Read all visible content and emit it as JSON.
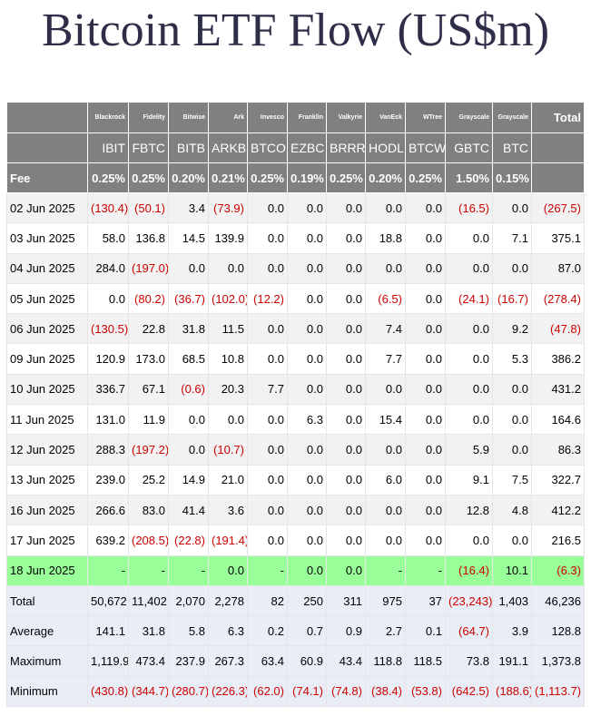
{
  "header": {
    "title": "Bitcoin ETF Flow (US$m)"
  },
  "table": {
    "issuers": [
      "Blackrock",
      "Fidelity",
      "Bitwise",
      "Ark",
      "Invesco",
      "Franklin",
      "Valkyrie",
      "VanEck",
      "WTree",
      "Grayscale",
      "Grayscale"
    ],
    "total_label": "Total",
    "tickers": [
      "IBIT",
      "FBTC",
      "BITB",
      "ARKB",
      "BTCO",
      "EZBC",
      "BRRR",
      "HODL",
      "BTCW",
      "GBTC",
      "BTC"
    ],
    "fee_label": "Fee",
    "fees": [
      "0.25%",
      "0.25%",
      "0.20%",
      "0.21%",
      "0.25%",
      "0.19%",
      "0.25%",
      "0.20%",
      "0.25%",
      "1.50%",
      "0.15%"
    ],
    "rows": [
      {
        "date": "02 Jun 2025",
        "values": [
          "(130.4)",
          "(50.1)",
          "3.4",
          "(73.9)",
          "0.0",
          "0.0",
          "0.0",
          "0.0",
          "0.0",
          "(16.5)",
          "0.0",
          "(267.5)"
        ]
      },
      {
        "date": "03 Jun 2025",
        "values": [
          "58.0",
          "136.8",
          "14.5",
          "139.9",
          "0.0",
          "0.0",
          "0.0",
          "18.8",
          "0.0",
          "0.0",
          "7.1",
          "375.1"
        ]
      },
      {
        "date": "04 Jun 2025",
        "values": [
          "284.0",
          "(197.0)",
          "0.0",
          "0.0",
          "0.0",
          "0.0",
          "0.0",
          "0.0",
          "0.0",
          "0.0",
          "0.0",
          "87.0"
        ]
      },
      {
        "date": "05 Jun 2025",
        "values": [
          "0.0",
          "(80.2)",
          "(36.7)",
          "(102.0)",
          "(12.2)",
          "0.0",
          "0.0",
          "(6.5)",
          "0.0",
          "(24.1)",
          "(16.7)",
          "(278.4)"
        ]
      },
      {
        "date": "06 Jun 2025",
        "values": [
          "(130.5)",
          "22.8",
          "31.8",
          "11.5",
          "0.0",
          "0.0",
          "0.0",
          "7.4",
          "0.0",
          "0.0",
          "9.2",
          "(47.8)"
        ]
      },
      {
        "date": "09 Jun 2025",
        "values": [
          "120.9",
          "173.0",
          "68.5",
          "10.8",
          "0.0",
          "0.0",
          "0.0",
          "7.7",
          "0.0",
          "0.0",
          "5.3",
          "386.2"
        ]
      },
      {
        "date": "10 Jun 2025",
        "values": [
          "336.7",
          "67.1",
          "(0.6)",
          "20.3",
          "7.7",
          "0.0",
          "0.0",
          "0.0",
          "0.0",
          "0.0",
          "0.0",
          "431.2"
        ]
      },
      {
        "date": "11 Jun 2025",
        "values": [
          "131.0",
          "11.9",
          "0.0",
          "0.0",
          "0.0",
          "6.3",
          "0.0",
          "15.4",
          "0.0",
          "0.0",
          "0.0",
          "164.6"
        ]
      },
      {
        "date": "12 Jun 2025",
        "values": [
          "288.3",
          "(197.2)",
          "0.0",
          "(10.7)",
          "0.0",
          "0.0",
          "0.0",
          "0.0",
          "0.0",
          "5.9",
          "0.0",
          "86.3"
        ]
      },
      {
        "date": "13 Jun 2025",
        "values": [
          "239.0",
          "25.2",
          "14.9",
          "21.0",
          "0.0",
          "0.0",
          "0.0",
          "6.0",
          "0.0",
          "9.1",
          "7.5",
          "322.7"
        ]
      },
      {
        "date": "16 Jun 2025",
        "values": [
          "266.6",
          "83.0",
          "41.4",
          "3.6",
          "0.0",
          "0.0",
          "0.0",
          "0.0",
          "0.0",
          "12.8",
          "4.8",
          "412.2"
        ]
      },
      {
        "date": "17 Jun 2025",
        "values": [
          "639.2",
          "(208.5)",
          "(22.8)",
          "(191.4)",
          "0.0",
          "0.0",
          "0.0",
          "0.0",
          "0.0",
          "0.0",
          "0.0",
          "216.5"
        ]
      },
      {
        "date": "18 Jun 2025",
        "values": [
          "-",
          "-",
          "-",
          "0.0",
          "-",
          "0.0",
          "0.0",
          "-",
          "-",
          "(16.4)",
          "10.1",
          "(6.3)"
        ]
      }
    ],
    "summary": [
      {
        "label": "Total",
        "values": [
          "50,672",
          "11,402",
          "2,070",
          "2,278",
          "82",
          "250",
          "311",
          "975",
          "37",
          "(23,243)",
          "1,403",
          "46,236"
        ]
      },
      {
        "label": "Average",
        "values": [
          "141.1",
          "31.8",
          "5.8",
          "6.3",
          "0.2",
          "0.7",
          "0.9",
          "2.7",
          "0.1",
          "(64.7)",
          "3.9",
          "128.8"
        ]
      },
      {
        "label": "Maximum",
        "values": [
          "1,119.9",
          "473.4",
          "237.9",
          "267.3",
          "63.4",
          "60.9",
          "43.4",
          "118.8",
          "118.5",
          "73.8",
          "191.1",
          "1,373.8"
        ]
      },
      {
        "label": "Minimum",
        "values": [
          "(430.8)",
          "(344.7)",
          "(280.7)",
          "(226.3)",
          "(62.0)",
          "(74.1)",
          "(74.8)",
          "(38.4)",
          "(53.8)",
          "(642.5)",
          "(188.6)",
          "(1,113.7)"
        ]
      }
    ]
  }
}
